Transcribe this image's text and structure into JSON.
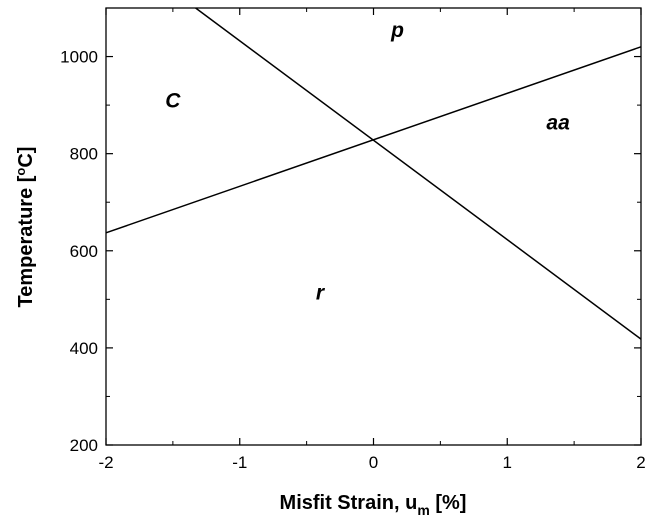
{
  "chart_data": {
    "type": "line",
    "xlabel": "Misfit Strain, u",
    "xlabel_subscript": "m",
    "xlabel_suffix": " [%]",
    "ylabel": "Temperature [",
    "ylabel_superscript": "o",
    "ylabel_suffix": "C]",
    "xlim": [
      -2,
      2
    ],
    "ylim": [
      200,
      1100
    ],
    "x_ticks": [
      -2,
      -1,
      0,
      1,
      2
    ],
    "x_tick_labels": [
      "-2",
      "-1",
      "0",
      "1",
      "2"
    ],
    "y_ticks": [
      200,
      400,
      600,
      800,
      1000
    ],
    "y_tick_labels": [
      "200",
      "400",
      "600",
      "800",
      "1000"
    ],
    "grid": false,
    "series": [
      {
        "points": [
          [
            -2,
            637
          ],
          [
            2,
            1020
          ]
        ]
      },
      {
        "points": [
          [
            -1.33,
            1100
          ],
          [
            2,
            418
          ]
        ]
      }
    ],
    "region_labels": [
      {
        "text": "p",
        "x": 0.18,
        "y": 1040
      },
      {
        "text": "C",
        "x": -1.5,
        "y": 895
      },
      {
        "text": "aa",
        "x": 1.38,
        "y": 850
      },
      {
        "text": "r",
        "x": -0.4,
        "y": 500
      }
    ]
  }
}
